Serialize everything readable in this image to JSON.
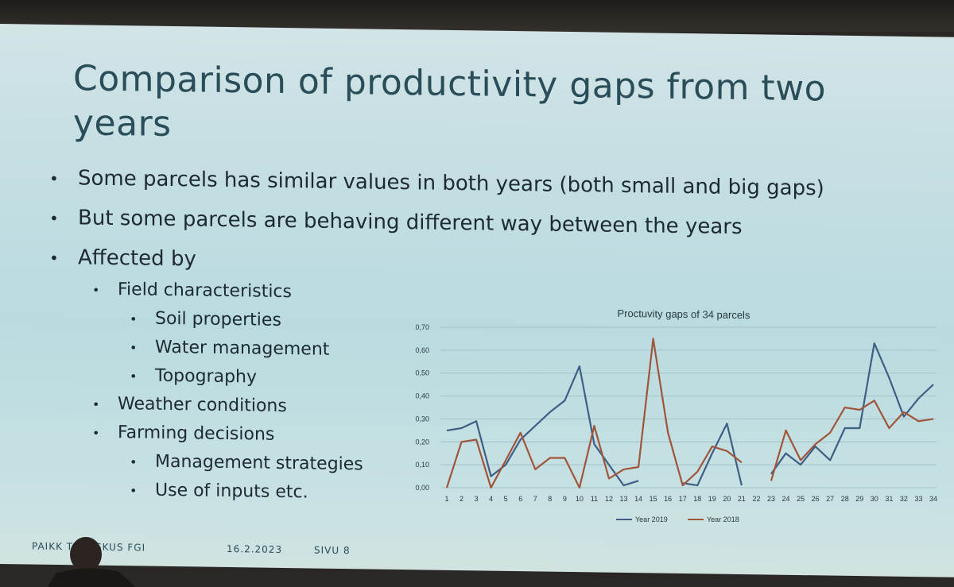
{
  "slide": {
    "title": "Comparison of productivity gaps from two years",
    "bullets": [
      "Some parcels has similar values in both years (both small and big gaps)",
      "But some parcels are behaving different way between the years",
      "Affected by"
    ],
    "sub_bullets": {
      "field_characteristics": "Field characteristics",
      "soil": "Soil properties",
      "water": "Water management",
      "topography": "Topography",
      "weather": "Weather conditions",
      "farming": "Farming decisions",
      "management": "Management strategies",
      "inputs": "Use of inputs etc."
    },
    "footer": {
      "org": "PAIKK   TOKESKUS FGI",
      "date": "16.2.2023",
      "page": "SIVU 8"
    }
  },
  "colors": {
    "series_2019": "#3f5e86",
    "series_2018": "#a0553a",
    "title": "#2a4d5a"
  },
  "chart_data": {
    "type": "line",
    "title": "Proctuvity gaps of 34 parcels",
    "x": [
      1,
      2,
      3,
      4,
      5,
      6,
      7,
      8,
      9,
      10,
      11,
      12,
      13,
      14,
      15,
      16,
      17,
      18,
      19,
      20,
      21,
      22,
      23,
      24,
      25,
      26,
      27,
      28,
      29,
      30,
      31,
      32,
      33,
      34
    ],
    "ylim": [
      0,
      0.7
    ],
    "yticks": [
      "0,00",
      "0,10",
      "0,20",
      "0,30",
      "0,40",
      "0,50",
      "0,60",
      "0,70"
    ],
    "grid": true,
    "legend_position": "bottom",
    "series": [
      {
        "name": "Year 2019",
        "values": [
          0.25,
          0.26,
          0.29,
          0.05,
          0.1,
          0.21,
          0.27,
          0.33,
          0.38,
          0.53,
          0.19,
          0.1,
          0.01,
          0.03,
          null,
          null,
          0.02,
          0.01,
          0.15,
          0.28,
          0.01,
          null,
          0.06,
          0.15,
          0.1,
          0.18,
          0.12,
          0.26,
          0.26,
          0.63,
          0.48,
          0.31,
          0.39,
          0.45
        ]
      },
      {
        "name": "Year 2018",
        "values": [
          0.0,
          0.2,
          0.21,
          0.0,
          0.12,
          0.24,
          0.08,
          0.13,
          0.13,
          0.0,
          0.27,
          0.04,
          0.08,
          0.09,
          0.65,
          0.24,
          0.01,
          0.07,
          0.18,
          0.16,
          0.11,
          null,
          0.03,
          0.25,
          0.12,
          0.19,
          0.24,
          0.35,
          0.34,
          0.38,
          0.26,
          0.33,
          0.29,
          0.3
        ]
      }
    ]
  }
}
